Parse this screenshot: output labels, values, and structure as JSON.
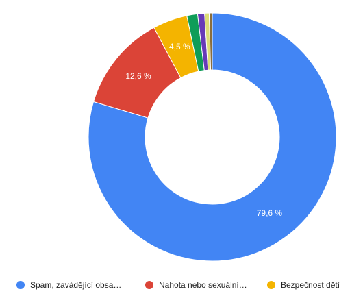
{
  "chart_data": {
    "type": "pie",
    "donut": true,
    "title": "",
    "slices": [
      {
        "label": "Spam, zavádějící obsa…",
        "value": 79.6,
        "value_label": "79,6 %",
        "color": "#4285f4"
      },
      {
        "label": "Nahota nebo sexuální…",
        "value": 12.6,
        "value_label": "12,6 %",
        "color": "#db4437"
      },
      {
        "label": "Bezpečnost dětí",
        "value": 4.5,
        "value_label": "4,5 %",
        "color": "#f4b400"
      },
      {
        "label": "",
        "value": 1.4,
        "value_label": "",
        "color": "#0f9d58"
      },
      {
        "label": "",
        "value": 0.9,
        "value_label": "",
        "color": "#673ab7"
      },
      {
        "label": "",
        "value": 0.6,
        "value_label": "",
        "color": "#dddd77"
      },
      {
        "label": "",
        "value": 0.4,
        "value_label": "",
        "color": "#8a6d3b"
      }
    ],
    "legend_position": "bottom",
    "legend": [
      {
        "label": "Spam, zavádějící obsa…",
        "color": "#4285f4"
      },
      {
        "label": "Nahota nebo sexuální…",
        "color": "#db4437"
      },
      {
        "label": "Bezpečnost dětí",
        "color": "#f4b400"
      }
    ]
  }
}
